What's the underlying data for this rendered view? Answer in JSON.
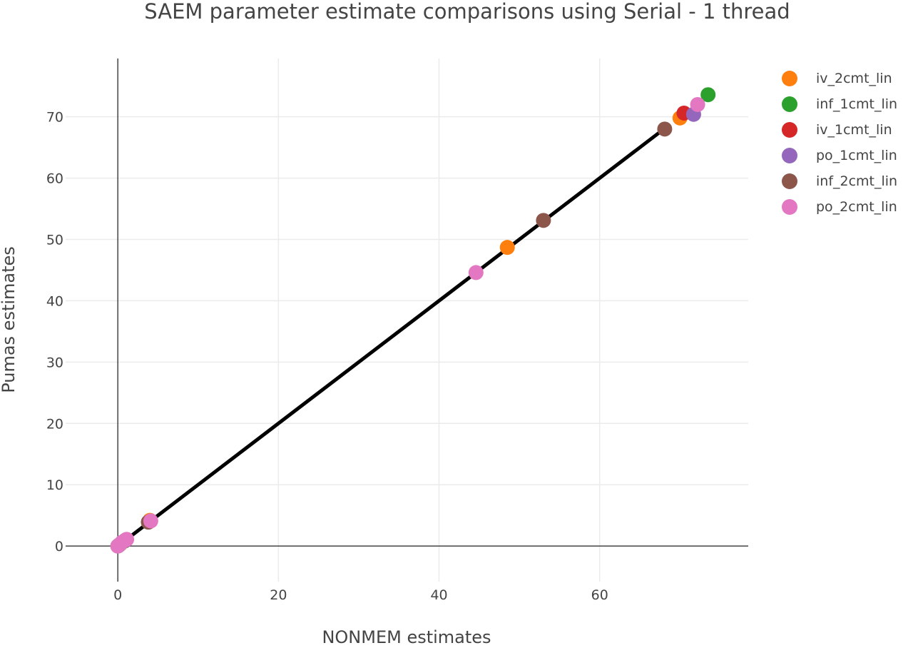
{
  "chart_data": {
    "type": "scatter",
    "title": "SAEM parameter estimate comparisons using Serial - 1 thread",
    "xlabel": "NONMEM estimates",
    "ylabel": "Pumas estimates",
    "xlim": [
      -6.5,
      78.5
    ],
    "ylim": [
      -5.8,
      79.5
    ],
    "x_ticks": [
      0,
      20,
      40,
      60
    ],
    "y_ticks": [
      0,
      10,
      20,
      30,
      40,
      50,
      60,
      70
    ],
    "grid": true,
    "legend_position": "top-right",
    "reference_line": {
      "from": [
        0,
        0
      ],
      "to": [
        68,
        68
      ],
      "color": "#000000"
    },
    "series": [
      {
        "name": "iv_2cmt_lin",
        "color": "#ff7f0e",
        "points": [
          [
            0.1,
            0.1
          ],
          [
            0.3,
            0.3
          ],
          [
            4.0,
            4.2
          ],
          [
            48.5,
            48.7
          ],
          [
            70.0,
            69.8
          ]
        ]
      },
      {
        "name": "inf_1cmt_lin",
        "color": "#2ca02c",
        "points": [
          [
            0.2,
            0.2
          ],
          [
            0.8,
            0.8
          ],
          [
            73.5,
            73.6
          ]
        ]
      },
      {
        "name": "iv_1cmt_lin",
        "color": "#d62728",
        "points": [
          [
            0.1,
            0.1
          ],
          [
            0.9,
            0.9
          ],
          [
            70.5,
            70.6
          ]
        ]
      },
      {
        "name": "po_1cmt_lin",
        "color": "#9467bd",
        "points": [
          [
            0.1,
            0.1
          ],
          [
            1.0,
            1.0
          ],
          [
            71.7,
            70.4
          ]
        ]
      },
      {
        "name": "inf_2cmt_lin",
        "color": "#8c564b",
        "points": [
          [
            0.0,
            0.0
          ],
          [
            3.8,
            3.9
          ],
          [
            53.0,
            53.1
          ],
          [
            68.1,
            68.0
          ]
        ]
      },
      {
        "name": "po_2cmt_lin",
        "color": "#e377c2",
        "points": [
          [
            0.0,
            0.0
          ],
          [
            0.2,
            0.2
          ],
          [
            0.5,
            0.6
          ],
          [
            1.1,
            1.1
          ],
          [
            4.1,
            4.1
          ],
          [
            44.6,
            44.6
          ],
          [
            72.2,
            72.0
          ]
        ]
      }
    ]
  }
}
